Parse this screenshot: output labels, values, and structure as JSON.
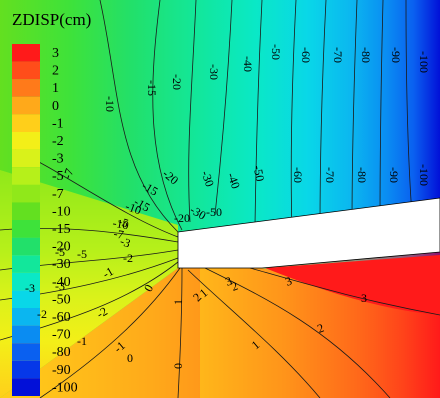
{
  "legend": {
    "title": "ZDISP(cm)",
    "levels": [
      {
        "label": "3",
        "color": "#ff1a1a"
      },
      {
        "label": "2",
        "color": "#ff4d1a"
      },
      {
        "label": "1",
        "color": "#ff7a1a"
      },
      {
        "label": "0",
        "color": "#ffa91a"
      },
      {
        "label": "-1",
        "color": "#ffcf1a"
      },
      {
        "label": "-2",
        "color": "#f3ef18"
      },
      {
        "label": "-3",
        "color": "#d9f21a"
      },
      {
        "label": "-5",
        "color": "#b6f01a"
      },
      {
        "label": "-7",
        "color": "#90e81a"
      },
      {
        "label": "-10",
        "color": "#63e020"
      },
      {
        "label": "-15",
        "color": "#3ee23a"
      },
      {
        "label": "-20",
        "color": "#22e06a"
      },
      {
        "label": "-30",
        "color": "#12e79b"
      },
      {
        "label": "-40",
        "color": "#0ae8c6"
      },
      {
        "label": "-50",
        "color": "#09d7e8"
      },
      {
        "label": "-60",
        "color": "#0bb6f0"
      },
      {
        "label": "-70",
        "color": "#0a8cf2"
      },
      {
        "label": "-80",
        "color": "#0a60f0"
      },
      {
        "label": "-90",
        "color": "#0638e8"
      },
      {
        "label": "-100",
        "color": "#0210d8"
      }
    ]
  },
  "contour_labels": [
    "-100",
    "-90",
    "-80",
    "-70",
    "-60",
    "-50",
    "-40",
    "-30",
    "-20",
    "-15",
    "-10",
    "-100",
    "-90",
    "-80",
    "-70",
    "-60",
    "-50",
    "-40",
    "-30",
    "-20",
    "-15",
    "-10",
    "-7",
    "-5",
    "-3",
    "-2",
    "-1",
    "0",
    "1",
    "2",
    "3",
    "-50",
    "-30",
    "-20",
    "-15",
    "-10",
    "-7",
    "-5",
    "-3",
    "-2",
    "-1",
    "0",
    "1",
    "2",
    "3",
    "-5",
    "-3",
    "-2",
    "-1",
    "0",
    "1",
    "2",
    "3"
  ],
  "colors": {
    "background": "#ffffff",
    "tunnel": "#ffffff",
    "contour_line": "#1a1a1a"
  }
}
